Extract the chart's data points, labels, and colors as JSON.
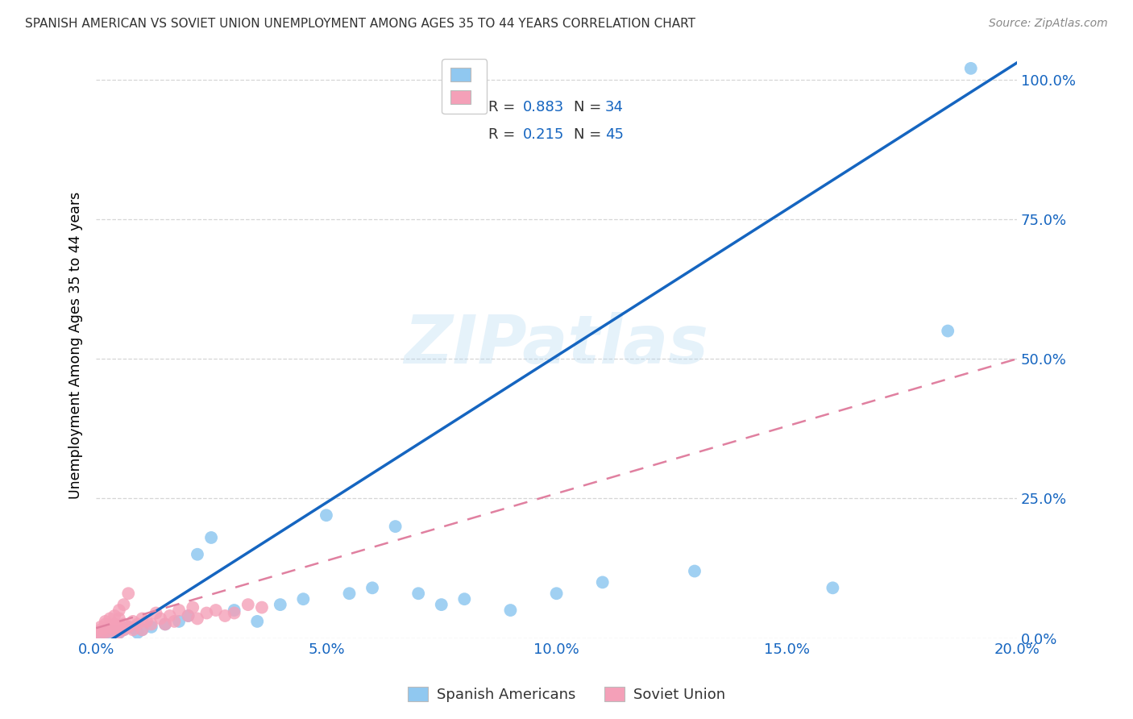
{
  "title": "SPANISH AMERICAN VS SOVIET UNION UNEMPLOYMENT AMONG AGES 35 TO 44 YEARS CORRELATION CHART",
  "source": "Source: ZipAtlas.com",
  "xlim": [
    0.0,
    0.2
  ],
  "ylim": [
    0.0,
    1.05
  ],
  "xtick_vals": [
    0.0,
    0.05,
    0.1,
    0.15,
    0.2
  ],
  "xtick_labels": [
    "0.0%",
    "5.0%",
    "10.0%",
    "15.0%",
    "20.0%"
  ],
  "ytick_vals": [
    0.0,
    0.25,
    0.5,
    0.75,
    1.0
  ],
  "ytick_labels": [
    "0.0%",
    "25.0%",
    "50.0%",
    "75.0%",
    "100.0%"
  ],
  "blue_color": "#90c8f0",
  "pink_color": "#f4a0b8",
  "blue_line_color": "#1565c0",
  "pink_line_color": "#e080a0",
  "text_blue_color": "#1565c0",
  "R_blue": 0.883,
  "N_blue": 34,
  "R_pink": 0.215,
  "N_pink": 45,
  "legend_label_blue": "Spanish Americans",
  "legend_label_pink": "Soviet Union",
  "ylabel": "Unemployment Among Ages 35 to 44 years",
  "watermark": "ZIPatlas",
  "blue_scatter_x": [
    0.001,
    0.002,
    0.003,
    0.004,
    0.005,
    0.006,
    0.007,
    0.008,
    0.009,
    0.01,
    0.012,
    0.015,
    0.018,
    0.02,
    0.022,
    0.025,
    0.03,
    0.035,
    0.04,
    0.045,
    0.05,
    0.055,
    0.06,
    0.065,
    0.07,
    0.075,
    0.08,
    0.09,
    0.1,
    0.11,
    0.13,
    0.16,
    0.185,
    0.19
  ],
  "blue_scatter_y": [
    0.005,
    0.01,
    0.008,
    0.012,
    0.01,
    0.015,
    0.02,
    0.018,
    0.01,
    0.015,
    0.02,
    0.025,
    0.03,
    0.04,
    0.15,
    0.18,
    0.05,
    0.03,
    0.06,
    0.07,
    0.22,
    0.08,
    0.09,
    0.2,
    0.08,
    0.06,
    0.07,
    0.05,
    0.08,
    0.1,
    0.12,
    0.09,
    0.55,
    1.02
  ],
  "pink_scatter_x": [
    0.0,
    0.001,
    0.001,
    0.001,
    0.002,
    0.002,
    0.002,
    0.002,
    0.003,
    0.003,
    0.003,
    0.004,
    0.004,
    0.004,
    0.005,
    0.005,
    0.005,
    0.005,
    0.006,
    0.006,
    0.006,
    0.007,
    0.007,
    0.008,
    0.008,
    0.009,
    0.01,
    0.01,
    0.011,
    0.012,
    0.013,
    0.014,
    0.015,
    0.016,
    0.017,
    0.018,
    0.02,
    0.021,
    0.022,
    0.024,
    0.026,
    0.028,
    0.03,
    0.033,
    0.036
  ],
  "pink_scatter_y": [
    0.01,
    0.008,
    0.015,
    0.02,
    0.01,
    0.018,
    0.025,
    0.03,
    0.012,
    0.02,
    0.035,
    0.015,
    0.025,
    0.04,
    0.01,
    0.02,
    0.035,
    0.05,
    0.015,
    0.025,
    0.06,
    0.02,
    0.08,
    0.015,
    0.03,
    0.025,
    0.015,
    0.035,
    0.03,
    0.025,
    0.045,
    0.035,
    0.025,
    0.04,
    0.03,
    0.05,
    0.04,
    0.055,
    0.035,
    0.045,
    0.05,
    0.04,
    0.045,
    0.06,
    0.055
  ],
  "blue_line_x0": 0.0,
  "blue_line_y0": -0.02,
  "blue_line_x1": 0.2,
  "blue_line_y1": 1.03,
  "pink_line_x0": 0.0,
  "pink_line_y0": 0.018,
  "pink_line_x1": 0.2,
  "pink_line_y1": 0.5
}
